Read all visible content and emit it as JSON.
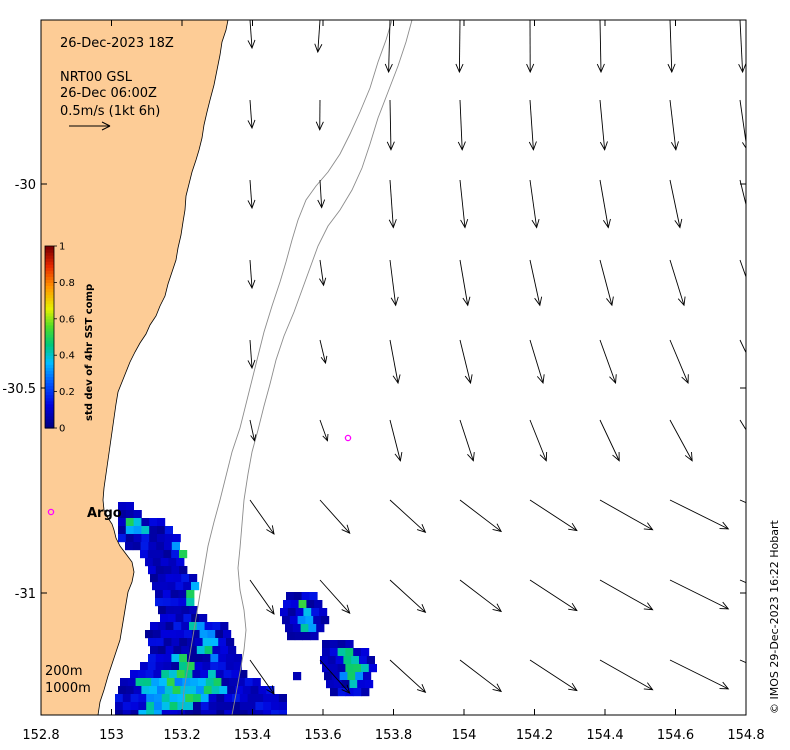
{
  "header": {
    "datetime": "26-Dec-2023 18Z",
    "source": "NRT00 GSL",
    "current_time": "26-Dec 06:00Z",
    "scale_label": "0.5m/s (1kt 6h)"
  },
  "isobath_legend": {
    "shallow": "200m",
    "deep": "1000m"
  },
  "colorbar": {
    "title": "std dev of 4hr SST comp",
    "ticks": [
      "0",
      "0.2",
      "0.4",
      "0.6",
      "0.8",
      "1"
    ],
    "range": [
      0,
      1
    ]
  },
  "argo": {
    "label": "Argo",
    "marker_color": "#ff00ff"
  },
  "credit": "© IMOS 29-Dec-2023 16:22 Hobart",
  "colors": {
    "land": "#fdcc96",
    "ocean": "#ffffff",
    "isobath": "#8c8c8c",
    "vector": "#000000"
  },
  "map": {
    "lon_range": [
      152.8,
      154.8
    ],
    "lat_range": [
      -31.3,
      -29.6
    ],
    "lon_ticks": [
      "152.8",
      "153",
      "153.2",
      "153.4",
      "153.6",
      "153.8",
      "154",
      "154.2",
      "154.4",
      "154.6",
      "154.8"
    ],
    "lat_ticks": [
      "-30",
      "-30.5",
      "-31"
    ]
  }
}
